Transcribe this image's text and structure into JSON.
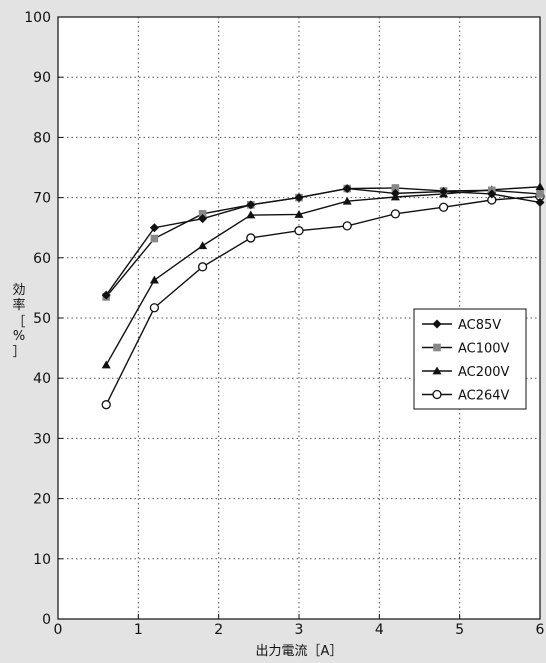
{
  "chart_data": {
    "type": "line",
    "title": "",
    "xlabel": "出力電流［A］",
    "ylabel_chars": [
      "効",
      "率",
      "［",
      "%",
      "］"
    ],
    "xlim": [
      0,
      6
    ],
    "ylim": [
      0,
      100
    ],
    "xticks": [
      0,
      1,
      2,
      3,
      4,
      5,
      6
    ],
    "yticks": [
      0,
      10,
      20,
      30,
      40,
      50,
      60,
      70,
      80,
      90,
      100
    ],
    "grid": true,
    "legend_position": "right-middle",
    "series": [
      {
        "name": "AC85V",
        "marker": "diamond",
        "color": "#111111",
        "x": [
          0.6,
          1.2,
          1.8,
          2.4,
          3.0,
          3.6,
          4.2,
          4.8,
          5.4,
          6.0
        ],
        "y": [
          53.8,
          65.0,
          66.5,
          68.8,
          70.0,
          71.5,
          70.7,
          71.0,
          70.6,
          69.2
        ]
      },
      {
        "name": "AC100V",
        "marker": "square",
        "color": "#888888",
        "x": [
          0.6,
          1.2,
          1.8,
          2.4,
          3.0,
          3.6,
          4.2,
          4.8,
          5.4,
          6.0
        ],
        "y": [
          53.5,
          63.2,
          67.3,
          68.8,
          70.0,
          71.5,
          71.6,
          71.1,
          71.2,
          70.6
        ]
      },
      {
        "name": "AC200V",
        "marker": "triangle",
        "color": "#111111",
        "x": [
          0.6,
          1.2,
          1.8,
          2.4,
          3.0,
          3.6,
          4.2,
          4.8,
          5.4,
          6.0
        ],
        "y": [
          42.2,
          56.3,
          62.0,
          67.1,
          67.2,
          69.4,
          70.1,
          70.6,
          71.3,
          71.8
        ]
      },
      {
        "name": "AC264V",
        "marker": "circle-open",
        "color": "#111111",
        "x": [
          0.6,
          1.2,
          1.8,
          2.4,
          3.0,
          3.6,
          4.2,
          4.8,
          5.4,
          6.0
        ],
        "y": [
          35.6,
          51.7,
          58.5,
          63.3,
          64.5,
          65.3,
          67.3,
          68.4,
          69.6,
          70.2
        ]
      }
    ]
  }
}
